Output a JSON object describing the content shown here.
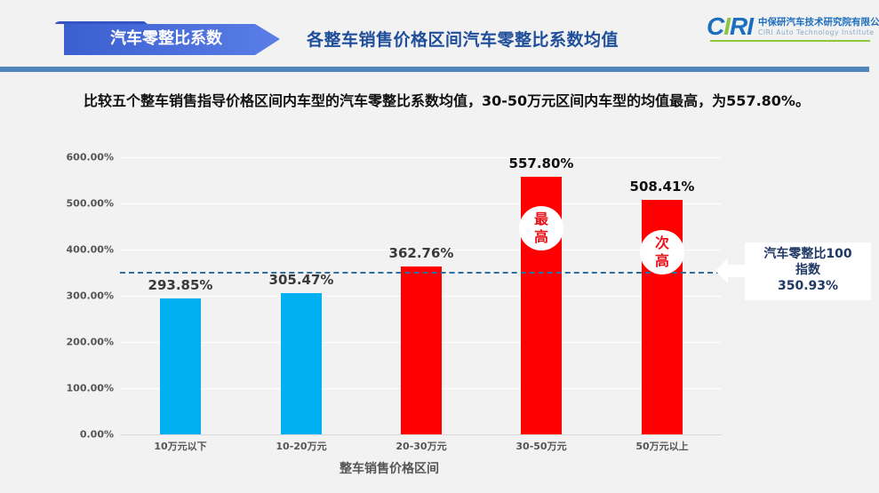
{
  "header": {
    "section_tag": "汽车零整比系数",
    "title": "各整车销售价格区间汽车零整比系数均值",
    "logo": {
      "mark_c": "C",
      "mark_i": "I",
      "mark_ri": "RI",
      "name_cn": "中保研汽车技术研究院有限公司",
      "name_en": "CIRI Auto Technology Institute"
    }
  },
  "intro_text": "比较五个整车销售指导价格区间内车型的汽车零整比系数均值，30-50万元区间内车型的均值最高，为557.80%。",
  "colors": {
    "blue_bar": "#00b0f0",
    "red_bar": "#ff0000",
    "reference_line": "#2d6e9e",
    "title_blue": "#1f4e9a",
    "rule": "#4f86bc"
  },
  "chart_data": {
    "type": "bar",
    "title": "各整车销售价格区间汽车零整比系数均值",
    "xlabel": "整车销售价格区间",
    "ylabel": "",
    "ylim": [
      0,
      600
    ],
    "yticks": [
      "0.00%",
      "100.00%",
      "200.00%",
      "300.00%",
      "400.00%",
      "500.00%",
      "600.00%"
    ],
    "grid": true,
    "categories": [
      "10万元以下",
      "10-20万元",
      "20-30万元",
      "30-50万元",
      "50万元以上"
    ],
    "values": [
      293.85,
      305.47,
      362.76,
      557.8,
      508.41
    ],
    "value_labels": [
      "293.85%",
      "305.47%",
      "362.76%",
      "557.80%",
      "508.41%"
    ],
    "bar_colors": [
      "#00b0f0",
      "#00b0f0",
      "#ff0000",
      "#ff0000",
      "#ff0000"
    ],
    "annotations": [
      {
        "category": "30-50万元",
        "text_line1": "最",
        "text_line2": "高"
      },
      {
        "category": "50万元以上",
        "text_line1": "次",
        "text_line2": "高"
      }
    ],
    "reference_line": {
      "value": 350.93,
      "label_line1": "汽车零整比100",
      "label_line2": "指数",
      "label_line3": "350.93%"
    }
  }
}
